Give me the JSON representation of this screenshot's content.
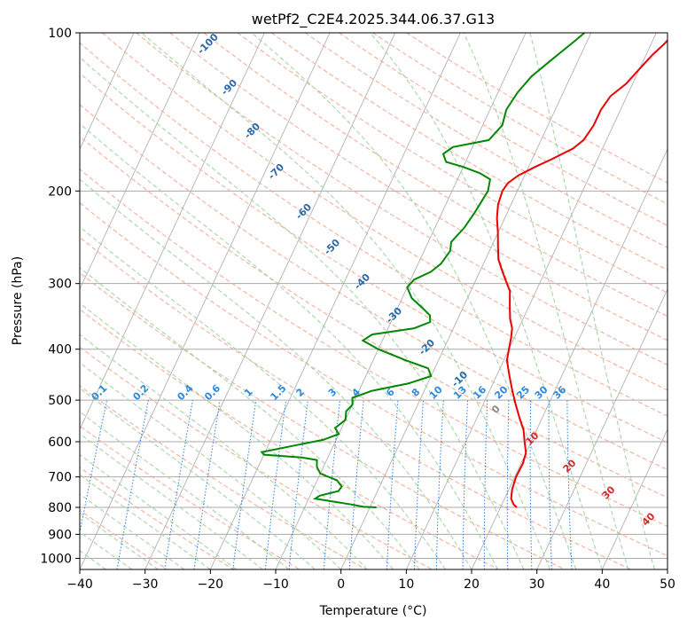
{
  "chart_data": {
    "type": "line",
    "title": "wetPf2_C2E4.2025.344.06.37.G13",
    "xlabel": "Temperature (°C)",
    "ylabel": "Pressure (hPa)",
    "xlim": [
      -40,
      50
    ],
    "ylim": [
      1050,
      100
    ],
    "y_scale": "log",
    "grid": true,
    "x_ticks": [
      "−40",
      "−30",
      "−20",
      "−10",
      "0",
      "10",
      "20",
      "30",
      "40",
      "50"
    ],
    "y_ticks": [
      {
        "p": 100,
        "label": "100"
      },
      {
        "p": 200,
        "label": "200"
      },
      {
        "p": 300,
        "label": "300"
      },
      {
        "p": 400,
        "label": "400"
      },
      {
        "p": 500,
        "label": "500"
      },
      {
        "p": 600,
        "label": "600"
      },
      {
        "p": 700,
        "label": "700"
      },
      {
        "p": 800,
        "label": "800"
      },
      {
        "p": 900,
        "label": "900"
      },
      {
        "p": 1000,
        "label": "1000"
      }
    ],
    "series": [
      {
        "role": "temperature",
        "color": "#ee0000",
        "points": [
          [
            22.5,
            800
          ],
          [
            21.8,
            790
          ],
          [
            21,
            770
          ],
          [
            20.5,
            740
          ],
          [
            20.2,
            700
          ],
          [
            20.3,
            660
          ],
          [
            20,
            630
          ],
          [
            19,
            600
          ],
          [
            18,
            570
          ],
          [
            16.5,
            540
          ],
          [
            15,
            510
          ],
          [
            13.5,
            480
          ],
          [
            12,
            450
          ],
          [
            10.5,
            420
          ],
          [
            10,
            400
          ],
          [
            9.5,
            380
          ],
          [
            9,
            365
          ],
          [
            8,
            350
          ],
          [
            7,
            330
          ],
          [
            6,
            310
          ],
          [
            5,
            300
          ],
          [
            3.5,
            285
          ],
          [
            2,
            270
          ],
          [
            1,
            255
          ],
          [
            0,
            240
          ],
          [
            -1.2,
            225
          ],
          [
            -2,
            212
          ],
          [
            -2.3,
            200
          ],
          [
            -2,
            193
          ],
          [
            -1,
            187
          ],
          [
            1,
            180
          ],
          [
            3,
            174
          ],
          [
            5.5,
            166
          ],
          [
            6.5,
            160
          ],
          [
            7,
            150
          ],
          [
            7,
            140
          ],
          [
            7.5,
            132
          ],
          [
            9,
            125
          ],
          [
            10,
            117
          ],
          [
            11,
            110
          ],
          [
            12,
            105
          ],
          [
            12.8,
            100
          ]
        ]
      },
      {
        "role": "dewpoint",
        "color": "#008800",
        "points": [
          [
            1,
            800
          ],
          [
            -1,
            798
          ],
          [
            -3,
            790
          ],
          [
            -6,
            780
          ],
          [
            -9,
            770
          ],
          [
            -8.5,
            760
          ],
          [
            -6,
            745
          ],
          [
            -5.8,
            730
          ],
          [
            -7,
            710
          ],
          [
            -10,
            690
          ],
          [
            -11,
            670
          ],
          [
            -11.5,
            650
          ],
          [
            -14,
            643
          ],
          [
            -20,
            635
          ],
          [
            -20.5,
            628
          ],
          [
            -16,
            610
          ],
          [
            -12,
            595
          ],
          [
            -10,
            580
          ],
          [
            -11,
            565
          ],
          [
            -10,
            545
          ],
          [
            -10.5,
            525
          ],
          [
            -10,
            510
          ],
          [
            -10.5,
            495
          ],
          [
            -8,
            480
          ],
          [
            -3,
            465
          ],
          [
            0,
            450
          ],
          [
            -1,
            435
          ],
          [
            -5,
            420
          ],
          [
            -10,
            400
          ],
          [
            -13,
            385
          ],
          [
            -12,
            375
          ],
          [
            -6,
            365
          ],
          [
            -4,
            355
          ],
          [
            -4.5,
            345
          ],
          [
            -6,
            335
          ],
          [
            -8.5,
            320
          ],
          [
            -10,
            305
          ],
          [
            -9.5,
            295
          ],
          [
            -7.5,
            285
          ],
          [
            -6.5,
            275
          ],
          [
            -6,
            260
          ],
          [
            -6.5,
            250
          ],
          [
            -5.5,
            235
          ],
          [
            -5,
            220
          ],
          [
            -4.5,
            200
          ],
          [
            -5,
            190
          ],
          [
            -7,
            185
          ],
          [
            -10,
            180
          ],
          [
            -13,
            176
          ],
          [
            -14,
            170
          ],
          [
            -13,
            165
          ],
          [
            -8,
            160
          ],
          [
            -7,
            150
          ],
          [
            -7.5,
            140
          ],
          [
            -7,
            130
          ],
          [
            -6,
            121
          ],
          [
            -4,
            112
          ],
          [
            -2,
            104
          ],
          [
            -1,
            100
          ]
        ]
      }
    ],
    "annotations": {
      "dry_adiabat_labels": [
        "-100",
        "-90",
        "-80",
        "-70",
        "-60",
        "-50",
        "-40",
        "-30",
        "-20",
        "-10"
      ],
      "mixing_ratio_labels": [
        "0.1",
        "0.2",
        "0.4",
        "0.6",
        "1",
        "1.5",
        "2",
        "3",
        "4",
        "6",
        "8",
        "10",
        "13",
        "16",
        "20",
        "25",
        "30",
        "36"
      ],
      "moist_adiabat_labels": [
        "0",
        "10",
        "20",
        "30",
        "40"
      ]
    },
    "colors": {
      "isotherm": "#a9a9a9",
      "isobar": "#a9a9a9",
      "dry_adiabat": "#f4a88f",
      "moist_adiabat": "#9fd19f",
      "mixing_ratio": "#2a7fdf",
      "dry_label": "#2a6aa8",
      "mixing_label": "#2a8ae0",
      "moist_label": "#d62828",
      "zero_label": "#888888"
    }
  }
}
